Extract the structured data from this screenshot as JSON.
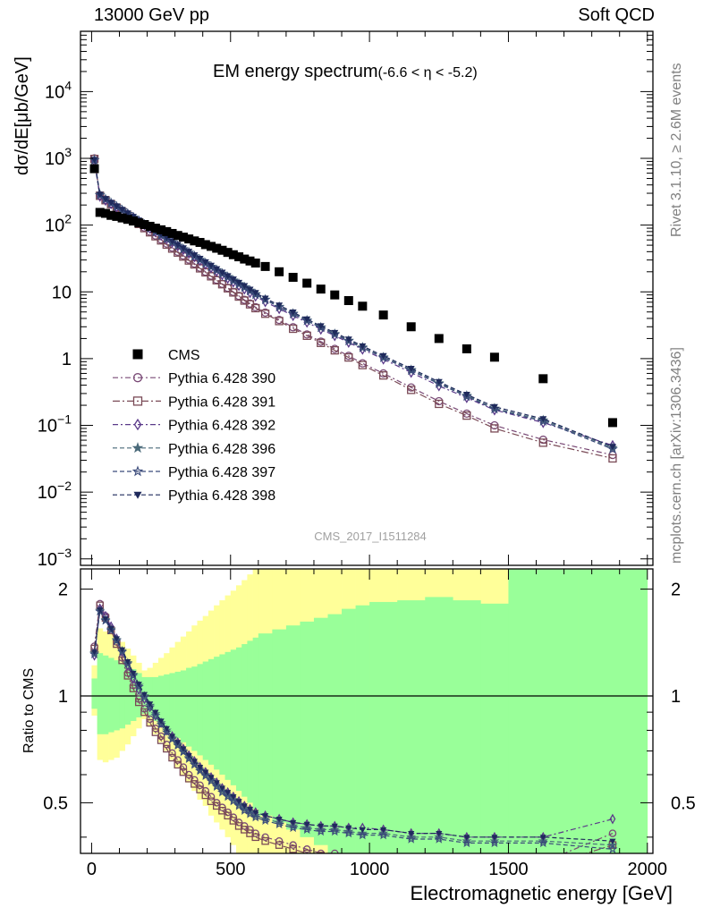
{
  "header": {
    "left": "13000 GeV pp",
    "right": "Soft QCD"
  },
  "side_texts": {
    "rivet": "Rivet 3.1.10, ≥ 2.6M events",
    "mcplots": "mcplots.cern.ch [arXiv:1306.3436]"
  },
  "chart_data": {
    "type": "scatter",
    "title": "EM energy spectrum",
    "title_suffix": "(-6.6 < η < -5.2)",
    "analysis_id": "CMS_2017_I1511284",
    "xlabel": "Electromagnetic energy [GeV]",
    "ylabel": "dσ/dE[μb/GeV]",
    "ratio_ylabel": "Ratio to CMS",
    "xlim": [
      -40,
      2020
    ],
    "ylim": [
      0.0008,
      80000
    ],
    "y_scale": "log",
    "ratio_ylim": [
      0.36,
      2.28
    ],
    "ratio_y_scale": "log",
    "xticks": [
      "0",
      "500",
      "1000",
      "1500",
      "2000"
    ],
    "yticks": [
      {
        "base": "10",
        "exp": "−3",
        "v": 0.001
      },
      {
        "base": "10",
        "exp": "−2",
        "v": 0.01
      },
      {
        "base": "10",
        "exp": "−1",
        "v": 0.1
      },
      {
        "base": "1",
        "exp": "",
        "v": 1
      },
      {
        "base": "10",
        "exp": "",
        "v": 10
      },
      {
        "base": "10",
        "exp": "2",
        "v": 100
      },
      {
        "base": "10",
        "exp": "3",
        "v": 1000
      },
      {
        "base": "10",
        "exp": "4",
        "v": 10000
      }
    ],
    "ratio_yticks": [
      {
        "label": "0.5",
        "v": 0.5
      },
      {
        "label": "1",
        "v": 1
      },
      {
        "label": "2",
        "v": 2
      }
    ],
    "legend_position": "middle-left",
    "data": {
      "name": "CMS",
      "color": "#000000",
      "x": [
        10,
        30,
        50,
        70,
        90,
        110,
        130,
        150,
        170,
        190,
        210,
        230,
        250,
        270,
        290,
        310,
        330,
        350,
        370,
        390,
        410,
        430,
        450,
        470,
        490,
        510,
        530,
        550,
        570,
        590,
        625,
        675,
        725,
        775,
        825,
        875,
        925,
        975,
        1050,
        1150,
        1250,
        1350,
        1450,
        1625,
        1875
      ],
      "y": [
        700,
        155,
        150,
        140,
        135,
        128,
        122,
        115,
        108,
        102,
        96,
        90,
        85,
        80,
        75,
        70,
        66,
        62,
        58,
        55,
        51,
        48,
        45,
        42,
        39,
        36,
        33.5,
        31,
        29,
        27,
        24,
        20,
        16.5,
        13.5,
        11,
        9,
        7.4,
        6.1,
        4.5,
        3,
        2,
        1.4,
        1.05,
        0.5,
        0.11
      ]
    },
    "bands": {
      "x_edges": [
        0,
        20,
        40,
        60,
        80,
        100,
        120,
        140,
        160,
        180,
        200,
        220,
        240,
        260,
        280,
        300,
        320,
        340,
        360,
        380,
        400,
        420,
        440,
        460,
        480,
        500,
        520,
        540,
        560,
        580,
        600,
        650,
        700,
        750,
        800,
        850,
        900,
        950,
        1000,
        1100,
        1200,
        1300,
        1400,
        1500,
        1750,
        2000
      ],
      "stat_lo": [
        0.92,
        0.78,
        0.78,
        0.79,
        0.8,
        0.81,
        0.83,
        0.85,
        0.87,
        0.89,
        0.87,
        0.85,
        0.82,
        0.8,
        0.78,
        0.76,
        0.74,
        0.72,
        0.7,
        0.68,
        0.66,
        0.64,
        0.62,
        0.6,
        0.58,
        0.56,
        0.54,
        0.52,
        0.5,
        0.48,
        0.46,
        0.44,
        0.42,
        0.4,
        0.38,
        0.36,
        0.35,
        0.34,
        0.33,
        0.32,
        0.31,
        0.3,
        0.3,
        0.3,
        0.3
      ],
      "stat_hi": [
        1.12,
        1.32,
        1.3,
        1.28,
        1.26,
        1.24,
        1.21,
        1.19,
        1.16,
        1.13,
        1.13,
        1.13,
        1.14,
        1.15,
        1.16,
        1.17,
        1.18,
        1.2,
        1.21,
        1.23,
        1.25,
        1.27,
        1.29,
        1.31,
        1.33,
        1.35,
        1.37,
        1.4,
        1.43,
        1.46,
        1.5,
        1.54,
        1.58,
        1.62,
        1.66,
        1.7,
        1.76,
        1.8,
        1.84,
        1.86,
        1.9,
        1.86,
        1.82,
        2.5,
        2.5
      ],
      "syst_lo": [
        0.88,
        0.66,
        0.65,
        0.66,
        0.67,
        0.7,
        0.73,
        0.77,
        0.81,
        0.86,
        0.82,
        0.78,
        0.74,
        0.7,
        0.66,
        0.63,
        0.6,
        0.57,
        0.54,
        0.51,
        0.49,
        0.46,
        0.44,
        0.42,
        0.4,
        0.38,
        0.36,
        0.34,
        0.33,
        0.32,
        0.3,
        0.3,
        0.3,
        0.3,
        0.3,
        0.3,
        0.3,
        0.3,
        0.3,
        0.3,
        0.3,
        0.3,
        0.3,
        0.3,
        0.3
      ],
      "syst_hi": [
        1.22,
        1.55,
        1.52,
        1.5,
        1.46,
        1.42,
        1.36,
        1.3,
        1.24,
        1.18,
        1.2,
        1.24,
        1.28,
        1.32,
        1.37,
        1.42,
        1.47,
        1.52,
        1.58,
        1.63,
        1.68,
        1.74,
        1.8,
        1.86,
        1.92,
        1.98,
        2.05,
        2.12,
        2.2,
        2.3,
        2.4,
        2.5,
        2.5,
        2.5,
        2.5,
        2.5,
        2.5,
        2.5,
        2.5,
        2.5,
        2.5,
        2.5,
        2.5,
        2.5,
        2.5
      ]
    },
    "series": [
      {
        "name": "Pythia 6.428 390",
        "color": "#7a4a76",
        "marker": "circle-open",
        "dash": "6,3,2,3",
        "x": [
          10,
          30,
          50,
          70,
          90,
          110,
          130,
          150,
          170,
          190,
          210,
          230,
          250,
          270,
          290,
          310,
          330,
          350,
          370,
          390,
          410,
          430,
          450,
          470,
          490,
          510,
          530,
          550,
          570,
          590,
          625,
          675,
          725,
          775,
          825,
          875,
          925,
          975,
          1050,
          1150,
          1250,
          1350,
          1450,
          1625,
          1875
        ],
        "y": [
          1000,
          280,
          240,
          210,
          185,
          160,
          140,
          122,
          106,
          92,
          80,
          70,
          61,
          53,
          46,
          40,
          35,
          30.5,
          26.5,
          23,
          20,
          17.5,
          15.2,
          13.2,
          11.5,
          10,
          8.7,
          7.6,
          6.7,
          5.9,
          4.9,
          3.8,
          2.95,
          2.3,
          1.8,
          1.4,
          1.1,
          0.85,
          0.6,
          0.37,
          0.23,
          0.15,
          0.1,
          0.061,
          0.036
        ],
        "ratio": [
          1.38,
          1.82,
          1.68,
          1.55,
          1.42,
          1.28,
          1.16,
          1.07,
          0.98,
          0.92,
          0.86,
          0.81,
          0.77,
          0.73,
          0.69,
          0.66,
          0.63,
          0.6,
          0.58,
          0.56,
          0.54,
          0.52,
          0.5,
          0.485,
          0.47,
          0.455,
          0.44,
          0.43,
          0.42,
          0.41,
          0.4,
          0.39,
          0.38,
          0.37,
          0.36,
          0.36,
          0.35,
          0.35,
          0.35,
          0.34,
          0.34,
          0.34,
          0.34,
          0.34,
          0.41
        ]
      },
      {
        "name": "Pythia 6.428 391",
        "color": "#7a4a56",
        "marker": "square-open",
        "dash": "8,3,2,3",
        "x": [
          10,
          30,
          50,
          70,
          90,
          110,
          130,
          150,
          170,
          190,
          210,
          230,
          250,
          270,
          290,
          310,
          330,
          350,
          370,
          390,
          410,
          430,
          450,
          470,
          490,
          510,
          530,
          550,
          570,
          590,
          625,
          675,
          725,
          775,
          825,
          875,
          925,
          975,
          1050,
          1150,
          1250,
          1350,
          1450,
          1625,
          1875
        ],
        "y": [
          980,
          275,
          236,
          206,
          182,
          158,
          138,
          120,
          104,
          90,
          78,
          68,
          59,
          51,
          44.5,
          38.8,
          33.8,
          29.5,
          25.8,
          22.5,
          19.6,
          17.1,
          14.9,
          13,
          11.3,
          9.8,
          8.5,
          7.4,
          6.5,
          5.7,
          4.7,
          3.65,
          2.8,
          2.2,
          1.72,
          1.33,
          1.04,
          0.8,
          0.56,
          0.34,
          0.21,
          0.14,
          0.09,
          0.055,
          0.032
        ],
        "ratio": [
          1.36,
          1.8,
          1.66,
          1.53,
          1.4,
          1.26,
          1.14,
          1.05,
          0.96,
          0.9,
          0.84,
          0.79,
          0.75,
          0.71,
          0.67,
          0.64,
          0.61,
          0.585,
          0.565,
          0.545,
          0.525,
          0.505,
          0.49,
          0.475,
          0.46,
          0.445,
          0.43,
          0.42,
          0.41,
          0.4,
          0.39,
          0.38,
          0.37,
          0.36,
          0.355,
          0.35,
          0.345,
          0.34,
          0.34,
          0.335,
          0.335,
          0.33,
          0.33,
          0.33,
          0.38
        ]
      },
      {
        "name": "Pythia 6.428 392",
        "color": "#5b3a8a",
        "marker": "diamond-open",
        "dash": "6,3,2,3",
        "x": [
          10,
          30,
          50,
          70,
          90,
          110,
          130,
          150,
          170,
          190,
          210,
          230,
          250,
          270,
          290,
          310,
          330,
          350,
          370,
          390,
          410,
          430,
          450,
          470,
          490,
          510,
          530,
          550,
          570,
          590,
          625,
          675,
          725,
          775,
          825,
          875,
          925,
          975,
          1050,
          1150,
          1250,
          1350,
          1450,
          1625,
          1875
        ],
        "y": [
          900,
          270,
          235,
          208,
          186,
          165,
          146,
          130,
          115,
          101,
          89,
          79,
          70,
          62,
          55,
          48.5,
          43,
          38,
          33.5,
          29.5,
          26,
          23,
          20.4,
          18,
          15.9,
          14,
          12.4,
          11,
          9.7,
          8.6,
          7.1,
          5.6,
          4.4,
          3.5,
          2.75,
          2.2,
          1.75,
          1.38,
          0.98,
          0.62,
          0.39,
          0.26,
          0.17,
          0.11,
          0.05
        ],
        "ratio": [
          1.3,
          1.76,
          1.68,
          1.57,
          1.45,
          1.33,
          1.22,
          1.12,
          1.04,
          0.98,
          0.93,
          0.88,
          0.84,
          0.8,
          0.77,
          0.74,
          0.71,
          0.68,
          0.655,
          0.63,
          0.61,
          0.59,
          0.57,
          0.55,
          0.535,
          0.52,
          0.505,
          0.49,
          0.48,
          0.47,
          0.46,
          0.45,
          0.44,
          0.435,
          0.43,
          0.43,
          0.425,
          0.425,
          0.42,
          0.41,
          0.41,
          0.4,
          0.4,
          0.4,
          0.45
        ]
      },
      {
        "name": "Pythia 6.428 396",
        "color": "#4a6a7a",
        "marker": "star-filled",
        "dash": "5,3",
        "x": [
          10,
          30,
          50,
          70,
          90,
          110,
          130,
          150,
          170,
          190,
          210,
          230,
          250,
          270,
          290,
          310,
          330,
          350,
          370,
          390,
          410,
          430,
          450,
          470,
          490,
          510,
          530,
          550,
          570,
          590,
          625,
          675,
          725,
          775,
          825,
          875,
          925,
          975,
          1050,
          1150,
          1250,
          1350,
          1450,
          1625,
          1875
        ],
        "y": [
          950,
          285,
          245,
          215,
          190,
          168,
          148,
          131,
          116,
          102,
          90,
          80,
          71,
          63,
          56,
          49.5,
          44,
          39,
          34.5,
          30.5,
          27,
          24,
          21.3,
          18.9,
          16.8,
          14.9,
          13.2,
          11.8,
          10.5,
          9.3,
          7.7,
          6,
          4.75,
          3.75,
          2.95,
          2.35,
          1.87,
          1.48,
          1.05,
          0.68,
          0.43,
          0.28,
          0.18,
          0.12,
          0.046
        ],
        "ratio": [
          1.32,
          1.74,
          1.64,
          1.54,
          1.44,
          1.34,
          1.24,
          1.15,
          1.07,
          1.0,
          0.94,
          0.89,
          0.84,
          0.8,
          0.76,
          0.73,
          0.7,
          0.67,
          0.645,
          0.62,
          0.6,
          0.58,
          0.56,
          0.54,
          0.525,
          0.51,
          0.495,
          0.48,
          0.47,
          0.46,
          0.45,
          0.44,
          0.43,
          0.425,
          0.42,
          0.42,
          0.415,
          0.41,
          0.41,
          0.4,
          0.4,
          0.39,
          0.39,
          0.39,
          0.38
        ]
      },
      {
        "name": "Pythia 6.428 397",
        "color": "#3a4a7a",
        "marker": "star-open",
        "dash": "5,3",
        "x": [
          10,
          30,
          50,
          70,
          90,
          110,
          130,
          150,
          170,
          190,
          210,
          230,
          250,
          270,
          290,
          310,
          330,
          350,
          370,
          390,
          410,
          430,
          450,
          470,
          490,
          510,
          530,
          550,
          570,
          590,
          625,
          675,
          725,
          775,
          825,
          875,
          925,
          975,
          1050,
          1150,
          1250,
          1350,
          1450,
          1625,
          1875
        ],
        "y": [
          940,
          282,
          242,
          213,
          188,
          166,
          147,
          130,
          115,
          101,
          89,
          79,
          70,
          62,
          55,
          49,
          43.5,
          38.5,
          34,
          30,
          26.6,
          23.6,
          21,
          18.6,
          16.5,
          14.6,
          13,
          11.6,
          10.3,
          9.1,
          7.6,
          5.9,
          4.65,
          3.68,
          2.9,
          2.3,
          1.83,
          1.45,
          1.03,
          0.66,
          0.42,
          0.27,
          0.175,
          0.115,
          0.044
        ],
        "ratio": [
          1.31,
          1.73,
          1.63,
          1.53,
          1.43,
          1.33,
          1.23,
          1.14,
          1.06,
          0.99,
          0.93,
          0.88,
          0.83,
          0.79,
          0.755,
          0.725,
          0.695,
          0.665,
          0.64,
          0.615,
          0.595,
          0.575,
          0.555,
          0.535,
          0.52,
          0.505,
          0.49,
          0.475,
          0.465,
          0.455,
          0.445,
          0.435,
          0.425,
          0.42,
          0.415,
          0.415,
          0.41,
          0.405,
          0.405,
          0.395,
          0.395,
          0.385,
          0.385,
          0.385,
          0.37
        ]
      },
      {
        "name": "Pythia 6.428 398",
        "color": "#1f2a5c",
        "marker": "triangle-down",
        "dash": "5,3",
        "x": [
          10,
          30,
          50,
          70,
          90,
          110,
          130,
          150,
          170,
          190,
          210,
          230,
          250,
          270,
          290,
          310,
          330,
          350,
          370,
          390,
          410,
          430,
          450,
          470,
          490,
          510,
          530,
          550,
          570,
          590,
          625,
          675,
          725,
          775,
          825,
          875,
          925,
          975,
          1050,
          1150,
          1250,
          1350,
          1450,
          1625,
          1875
        ],
        "y": [
          960,
          288,
          248,
          218,
          193,
          171,
          151,
          134,
          118,
          104,
          92,
          82,
          73,
          65,
          57.5,
          51,
          45.3,
          40.2,
          35.6,
          31.6,
          28,
          24.9,
          22.1,
          19.6,
          17.4,
          15.5,
          13.8,
          12.3,
          10.9,
          9.7,
          8,
          6.3,
          4.95,
          3.9,
          3.08,
          2.45,
          1.95,
          1.54,
          1.1,
          0.71,
          0.45,
          0.29,
          0.19,
          0.125,
          0.048
        ],
        "ratio": [
          1.33,
          1.75,
          1.65,
          1.55,
          1.45,
          1.35,
          1.25,
          1.16,
          1.08,
          1.01,
          0.95,
          0.9,
          0.85,
          0.81,
          0.77,
          0.74,
          0.71,
          0.68,
          0.655,
          0.63,
          0.61,
          0.59,
          0.57,
          0.55,
          0.535,
          0.52,
          0.505,
          0.49,
          0.48,
          0.47,
          0.46,
          0.45,
          0.44,
          0.435,
          0.43,
          0.43,
          0.425,
          0.42,
          0.42,
          0.41,
          0.41,
          0.4,
          0.4,
          0.4,
          0.39
        ]
      }
    ]
  }
}
